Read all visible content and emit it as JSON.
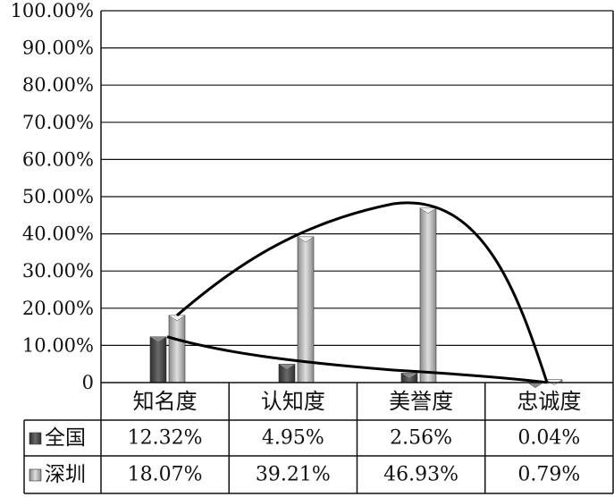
{
  "chart_data": {
    "type": "bar",
    "categories": [
      "知名度",
      "认知度",
      "美誉度",
      "忠诚度"
    ],
    "series": [
      {
        "name": "全国",
        "values": [
          12.32,
          4.95,
          2.56,
          0.04
        ],
        "labels": [
          "12.32%",
          "4.95%",
          "2.56%",
          "0.04%"
        ],
        "color": "#4a4a4a"
      },
      {
        "name": "深圳",
        "values": [
          18.07,
          39.21,
          46.93,
          0.79
        ],
        "labels": [
          "18.07%",
          "39.21%",
          "46.93%",
          "0.79%"
        ],
        "color": "#b5b5b5"
      }
    ],
    "y_ticks": [
      "0",
      "10.00%",
      "20.00%",
      "30.00%",
      "40.00%",
      "50.00%",
      "60.00%",
      "70.00%",
      "80.00%",
      "90.00%",
      "100.00%"
    ],
    "ylim": [
      0,
      100
    ],
    "grid": true,
    "legend": "data-table",
    "data_table": true,
    "trend_curves": true
  }
}
